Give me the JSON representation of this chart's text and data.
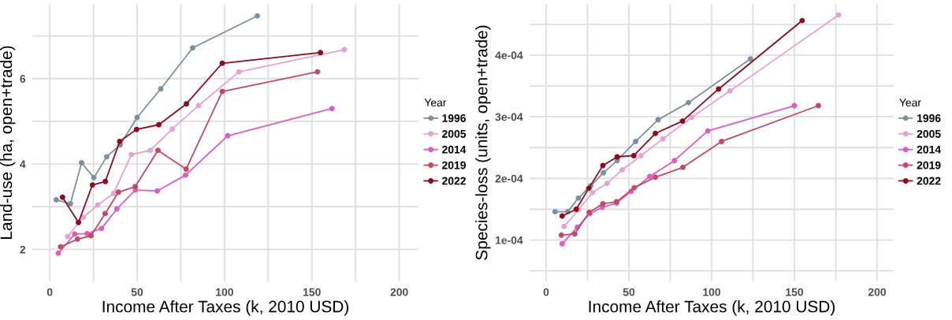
{
  "chart_data": [
    {
      "type": "line",
      "xlabel": "Income After Taxes (k, 2010 USD)",
      "ylabel": "Land-use (ha, open+trade)",
      "legend_title": "Year",
      "legend": "right",
      "grid": true,
      "marker": "circle",
      "line_style": "solid",
      "xlim": [
        -10,
        211
      ],
      "xticks": [
        0,
        {
          "value": 25,
          "label": null
        },
        50,
        {
          "value": 75,
          "label": null
        },
        100,
        {
          "value": 125,
          "label": null
        },
        150,
        {
          "value": 175,
          "label": null
        },
        200
      ],
      "ylim": [
        1.25,
        7.75
      ],
      "yticks": [
        2,
        {
          "value": 3,
          "label": null
        },
        4,
        {
          "value": 5,
          "label": null
        },
        6,
        {
          "value": 7,
          "label": null
        }
      ],
      "series": [
        {
          "name": "1996",
          "color": "#7f8fa0",
          "x": [
            3.7,
            11.8,
            18.2,
            25.2,
            32.6,
            40.3,
            50,
            63.5,
            81.8,
            118.8
          ],
          "values": [
            3.16,
            3.07,
            4.03,
            3.68,
            4.17,
            4.45,
            5.09,
            5.76,
            6.72,
            7.47
          ]
        },
        {
          "name": "2005",
          "color": "#e3a3d3",
          "x": [
            10.2,
            19.1,
            27.5,
            36.5,
            46.7,
            57.5,
            70.1,
            85.2,
            108.3,
            168.6
          ],
          "values": [
            2.3,
            2.75,
            3.04,
            3.31,
            4.22,
            4.32,
            4.82,
            5.37,
            6.16,
            6.68
          ]
        },
        {
          "name": "2014",
          "color": "#d85fc1",
          "x": [
            4.9,
            14.3,
            21.3,
            29.6,
            38.4,
            49,
            61.5,
            77.7,
            101.8,
            161.5
          ],
          "values": [
            1.91,
            2.36,
            2.37,
            2.49,
            2.95,
            3.39,
            3.37,
            3.74,
            4.66,
            5.3
          ]
        },
        {
          "name": "2019",
          "color": "#c24b63",
          "x": [
            6.2,
            15.9,
            23.6,
            31.7,
            39.3,
            48.9,
            61.9,
            78,
            98.7,
            153.2
          ],
          "values": [
            2.06,
            2.24,
            2.32,
            2.84,
            3.34,
            3.47,
            4.32,
            3.88,
            5.7,
            6.16
          ]
        },
        {
          "name": "2022",
          "color": "#8e0c1c",
          "x": [
            7.3,
            16.4,
            24.4,
            31.8,
            40,
            49.7,
            62.4,
            78.2,
            98.7,
            154.9
          ],
          "values": [
            3.22,
            2.63,
            3.51,
            3.59,
            4.53,
            4.81,
            4.92,
            5.41,
            6.36,
            6.61
          ]
        }
      ]
    },
    {
      "type": "line",
      "xlabel": "Income After Taxes (k, 2010 USD)",
      "ylabel": "Species-loss (units, open+trade)",
      "legend_title": "Year",
      "legend": "right",
      "grid": true,
      "marker": "circle",
      "line_style": "solid",
      "xlim": [
        -10,
        210
      ],
      "xticks": [
        0,
        {
          "value": 25,
          "label": null
        },
        50,
        {
          "value": 75,
          "label": null
        },
        100,
        {
          "value": 125,
          "label": null
        },
        150,
        {
          "value": 175,
          "label": null
        },
        200
      ],
      "ylim": [
        3.3e-05,
        0.000483
      ],
      "yticks": [
        {
          "value": 5e-05,
          "label": null
        },
        {
          "value": 0.0001,
          "label": "1e-04"
        },
        {
          "value": 0.00015,
          "label": null
        },
        {
          "value": 0.0002,
          "label": "2e-04"
        },
        {
          "value": 0.00025,
          "label": null
        },
        {
          "value": 0.0003,
          "label": "3e-04"
        },
        {
          "value": 0.00035,
          "label": null
        },
        {
          "value": 0.0004,
          "label": "4e-04"
        },
        {
          "value": 0.00045,
          "label": null
        }
      ],
      "series": [
        {
          "name": "1996",
          "color": "#7f8fa0",
          "x": [
            5.4,
            13,
            19.5,
            26.9,
            34.6,
            42.9,
            54.1,
            67.6,
            86,
            123.5
          ],
          "values": [
            0.000146,
            0.000146,
            0.000168,
            0.000188,
            0.000209,
            0.000229,
            0.00026,
            0.000295,
            0.000323,
            0.000394
          ]
        },
        {
          "name": "2005",
          "color": "#e3a3d3",
          "x": [
            10.8,
            19.5,
            28,
            36.8,
            46,
            57.3,
            70.5,
            87.8,
            111.1,
            176.7
          ],
          "values": [
            0.000122,
            0.000149,
            0.000177,
            0.000192,
            0.000214,
            0.000237,
            0.000264,
            0.000299,
            0.000342,
            0.000465
          ]
        },
        {
          "name": "2014",
          "color": "#d85fc1",
          "x": [
            9.7,
            18.9,
            26.5,
            33.9,
            42.6,
            51.4,
            62.6,
            77.5,
            97.7,
            150
          ],
          "values": [
            9.4e-05,
            0.000121,
            0.000143,
            0.000153,
            0.00016,
            0.000179,
            0.000203,
            0.000229,
            0.000277,
            0.000318
          ]
        },
        {
          "name": "2019",
          "color": "#c24b63",
          "x": [
            9.2,
            17.3,
            26,
            34.3,
            42.4,
            53.2,
            66,
            82.6,
            106,
            164.5
          ],
          "values": [
            0.000108,
            0.00011,
            0.000145,
            0.000159,
            0.000162,
            0.000185,
            0.000202,
            0.000218,
            0.00026,
            0.000318
          ]
        },
        {
          "name": "2022",
          "color": "#8e0c1c",
          "x": [
            9.7,
            18.2,
            25.8,
            34.3,
            42.9,
            53,
            66,
            82.4,
            104.2,
            154.7
          ],
          "values": [
            0.000139,
            0.00015,
            0.000184,
            0.000221,
            0.000235,
            0.000237,
            0.000273,
            0.000293,
            0.000345,
            0.000456
          ]
        }
      ]
    }
  ]
}
